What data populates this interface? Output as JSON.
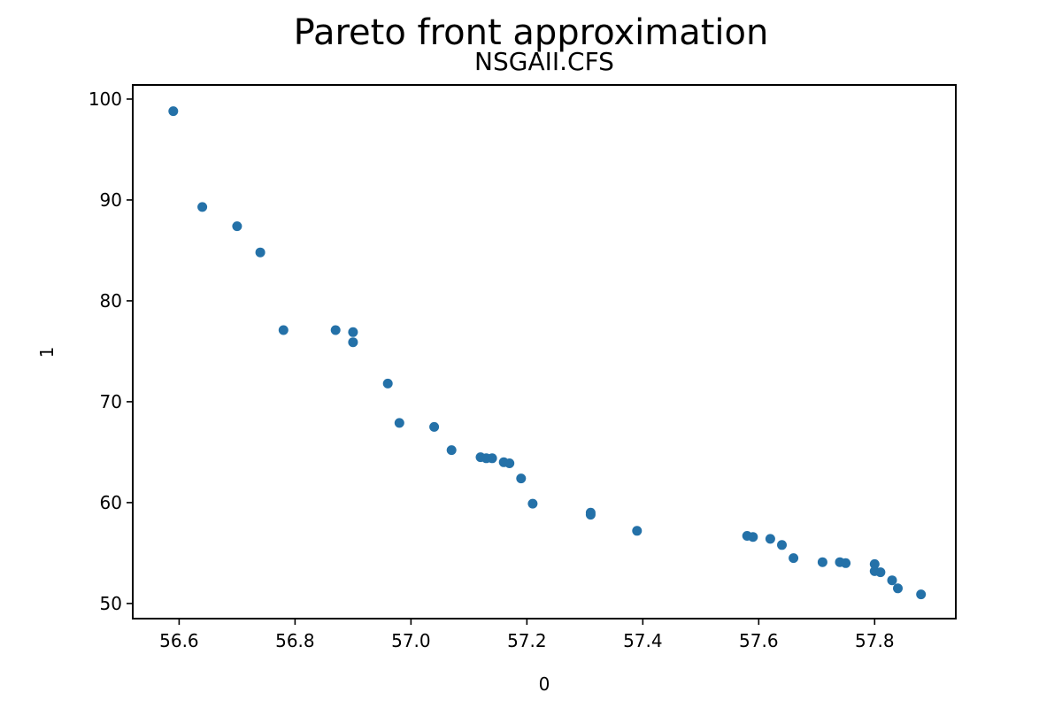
{
  "chart_data": {
    "type": "scatter",
    "title": "Pareto front approximation",
    "subtitle": "NSGAII.CFS",
    "xlabel": "0",
    "ylabel": "1",
    "xlim": [
      56.52,
      57.94
    ],
    "ylim": [
      48.5,
      101.4
    ],
    "xticks": [
      56.6,
      56.8,
      57.0,
      57.2,
      57.4,
      57.6,
      57.8
    ],
    "xtick_labels": [
      "56.6",
      "56.8",
      "57.0",
      "57.2",
      "57.4",
      "57.6",
      "57.8"
    ],
    "yticks": [
      50,
      60,
      70,
      80,
      90,
      100
    ],
    "ytick_labels": [
      "50",
      "60",
      "70",
      "80",
      "90",
      "100"
    ],
    "grid": false,
    "color": "#2471a8",
    "series": [
      {
        "x": [
          56.59,
          56.64,
          56.7,
          56.74,
          56.78,
          56.87,
          56.9,
          56.9,
          56.96,
          56.98,
          57.04,
          57.07,
          57.12,
          57.13,
          57.14,
          57.16,
          57.17,
          57.19,
          57.21,
          57.31,
          57.31,
          57.39,
          57.58,
          57.59,
          57.62,
          57.64,
          57.66,
          57.71,
          57.74,
          57.75,
          57.8,
          57.8,
          57.81,
          57.83,
          57.84,
          57.88
        ],
        "y": [
          98.8,
          89.3,
          87.4,
          84.8,
          77.1,
          77.1,
          76.9,
          75.9,
          71.8,
          67.9,
          67.5,
          65.2,
          64.5,
          64.4,
          64.4,
          64.0,
          63.9,
          62.4,
          59.9,
          59.0,
          58.8,
          57.2,
          56.7,
          56.6,
          56.4,
          55.8,
          54.5,
          54.1,
          54.1,
          54.0,
          53.9,
          53.2,
          53.1,
          52.3,
          51.5,
          50.9
        ]
      }
    ]
  }
}
